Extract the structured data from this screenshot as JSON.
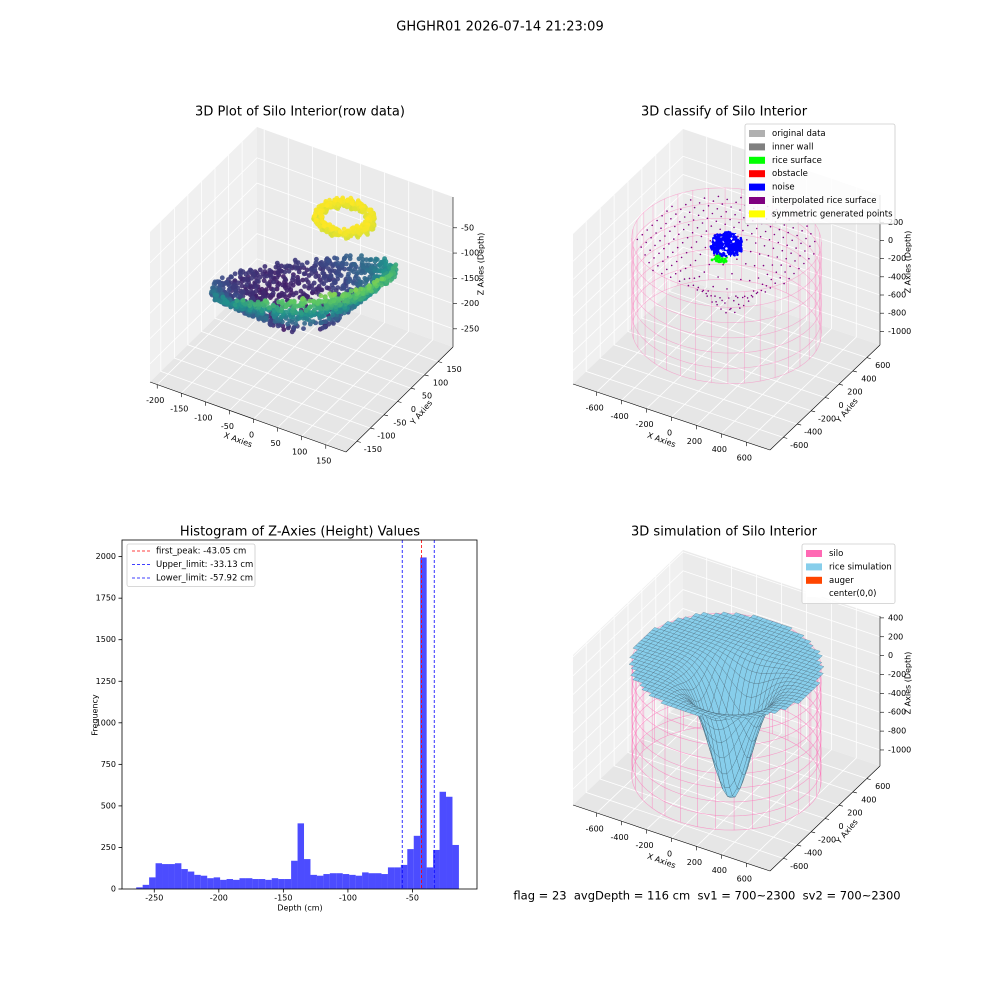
{
  "title": "GHGHR01 2026-07-14 21:23:09",
  "footer": "flag = 23  avgDepth = 116 cm  sv1 = 700~2300  sv2 = 700~2300",
  "chart_data": [
    {
      "type": "scatter3d",
      "title": "3D Plot of Silo Interior(row data)",
      "xlabel": "X Axies",
      "ylabel": "Y Axies",
      "zlabel": "Z Axies (Depth)",
      "xlim": [
        -215,
        192
      ],
      "ylim": [
        -190,
        205
      ],
      "zlim": [
        -286,
        11
      ],
      "xticks": [
        -200,
        -150,
        -100,
        -50,
        0,
        50,
        100,
        150
      ],
      "yticks": [
        -150,
        -100,
        -50,
        0,
        50,
        100,
        150
      ],
      "zticks": [
        -250,
        -200,
        -150,
        -100,
        -50
      ]
    },
    {
      "type": "scatter3d",
      "title": "3D classify of Silo Interior",
      "xlabel": "X Axies",
      "ylabel": "Y Axies",
      "zlabel": "Z Axies (Depth)",
      "xlim": [
        -790,
        790
      ],
      "ylim": [
        -790,
        790
      ],
      "zlim": [
        -1150,
        500
      ],
      "xticks": [
        -600,
        -400,
        -200,
        0,
        200,
        400,
        600
      ],
      "yticks": [
        -600,
        -400,
        -200,
        0,
        200,
        400,
        600
      ],
      "zticks": [
        -1000,
        -800,
        -600,
        -400,
        -200,
        0,
        200
      ],
      "legend": [
        {
          "label": "original data",
          "color": "#b0b0b0"
        },
        {
          "label": "inner wall",
          "color": "#808080"
        },
        {
          "label": "rice surface",
          "color": "#00ff00"
        },
        {
          "label": "obstacle",
          "color": "#ff0000"
        },
        {
          "label": "noise",
          "color": "#0000ff"
        },
        {
          "label": "interpolated rice surface",
          "color": "#800080"
        },
        {
          "label": "symmetric generated points",
          "color": "#ffff00"
        }
      ]
    },
    {
      "type": "histogram",
      "title": "Histogram of Z-Axies (Height) Values",
      "xlabel": "Depth (cm)",
      "ylabel": "Frequency",
      "color": "#0000ff",
      "bins": [
        -264,
        -259,
        -254,
        -249,
        -244,
        -239,
        -234,
        -229,
        -224,
        -219,
        -214,
        -209,
        -204,
        -199,
        -194,
        -189,
        -184,
        -179,
        -174,
        -169,
        -164,
        -159,
        -154,
        -149,
        -144,
        -139,
        -134,
        -129,
        -124,
        -119,
        -114,
        -109,
        -104,
        -99,
        -94,
        -89,
        -84,
        -79,
        -74,
        -69,
        -64,
        -59,
        -54,
        -49,
        -44,
        -39,
        -34,
        -29,
        -24,
        -19,
        -14
      ],
      "values": [
        10,
        25,
        70,
        155,
        150,
        150,
        155,
        120,
        105,
        85,
        80,
        65,
        70,
        55,
        60,
        55,
        65,
        65,
        60,
        60,
        55,
        65,
        60,
        60,
        170,
        395,
        180,
        85,
        80,
        90,
        95,
        95,
        90,
        85,
        80,
        100,
        95,
        95,
        90,
        130,
        130,
        145,
        240,
        320,
        1995,
        130,
        235,
        585,
        555,
        265
      ],
      "xlim": [
        -275,
        0
      ],
      "ylim": [
        0,
        2100
      ],
      "xticks": [
        -250,
        -200,
        -150,
        -100,
        -50
      ],
      "yticks": [
        0,
        250,
        500,
        750,
        1000,
        1250,
        1500,
        1750,
        2000
      ],
      "vlines": [
        {
          "label": "first_peak: -43.05 cm",
          "x": -43.05,
          "color": "#ff0000"
        },
        {
          "label": "Upper_limit: -33.13 cm",
          "x": -33.13,
          "color": "#0000ff"
        },
        {
          "label": "Lower_limit: -57.92 cm",
          "x": -57.92,
          "color": "#0000ff"
        }
      ]
    },
    {
      "type": "surface3d",
      "title": "3D simulation of Silo Interior",
      "xlabel": "X Axies",
      "ylabel": "Y Axies",
      "zlabel": "Z Axies (Depth)",
      "xlim": [
        -790,
        790
      ],
      "ylim": [
        -790,
        790
      ],
      "zlim": [
        -1170,
        420
      ],
      "xticks": [
        -600,
        -400,
        -200,
        0,
        200,
        400,
        600
      ],
      "yticks": [
        -600,
        -400,
        -200,
        0,
        200,
        400,
        600
      ],
      "zticks": [
        -1000,
        -800,
        -600,
        -400,
        -200,
        0,
        200,
        400
      ],
      "legend": [
        {
          "label": "silo",
          "color": "#ff69b4"
        },
        {
          "label": "rice simulation",
          "color": "#87ceeb"
        },
        {
          "label": "auger",
          "color": "#ff4500"
        },
        {
          "label": "center(0,0)",
          "color": "#ffffff"
        }
      ]
    }
  ]
}
